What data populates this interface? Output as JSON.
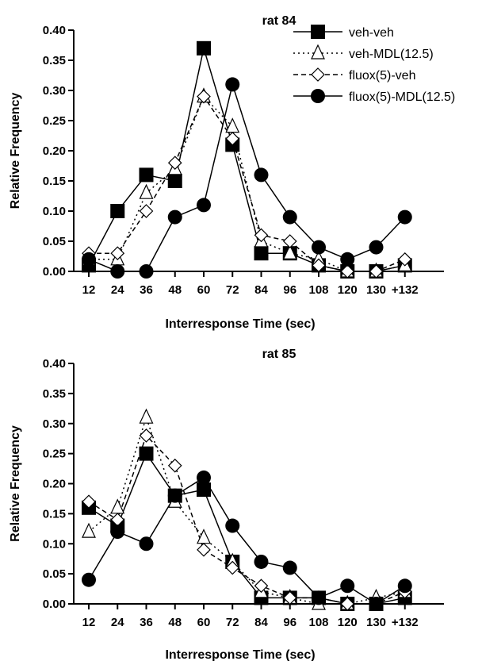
{
  "chart_data": [
    {
      "type": "line",
      "title": "rat 84",
      "xlabel": "Interresponse Time (sec)",
      "ylabel": "Relative Frequency",
      "categories": [
        "12",
        "24",
        "36",
        "48",
        "60",
        "72",
        "84",
        "96",
        "108",
        "120",
        "130",
        "+132"
      ],
      "yticks": [
        "0.00",
        "0.05",
        "0.10",
        "0.15",
        "0.20",
        "0.25",
        "0.30",
        "0.35",
        "0.40"
      ],
      "ylim": [
        0,
        0.4
      ],
      "grid": false,
      "legend_position": "top-right",
      "series": [
        {
          "name": "veh-veh",
          "marker": "filled-square",
          "line": "solid",
          "values": [
            0.01,
            0.1,
            0.16,
            0.15,
            0.37,
            0.21,
            0.03,
            0.03,
            0.01,
            0.0,
            0.0,
            0.01
          ]
        },
        {
          "name": "veh-MDL(12.5)",
          "marker": "open-triangle",
          "line": "dotted",
          "values": [
            0.02,
            0.02,
            0.13,
            0.17,
            0.29,
            0.24,
            0.05,
            0.03,
            0.02,
            0.0,
            0.0,
            0.01
          ]
        },
        {
          "name": "fluox(5)-veh",
          "marker": "open-diamond",
          "line": "dashed",
          "values": [
            0.03,
            0.03,
            0.1,
            0.18,
            0.29,
            0.22,
            0.06,
            0.05,
            0.01,
            0.0,
            0.0,
            0.02
          ]
        },
        {
          "name": "fluox(5)-MDL(12.5)",
          "marker": "filled-circle",
          "line": "solid",
          "values": [
            0.02,
            0.0,
            0.0,
            0.09,
            0.11,
            0.31,
            0.16,
            0.09,
            0.04,
            0.02,
            0.04,
            0.09
          ]
        }
      ]
    },
    {
      "type": "line",
      "title": "rat 85",
      "xlabel": "Interresponse Time (sec)",
      "ylabel": "Relative Frequency",
      "categories": [
        "12",
        "24",
        "36",
        "48",
        "60",
        "72",
        "84",
        "96",
        "108",
        "120",
        "130",
        "+132"
      ],
      "yticks": [
        "0.00",
        "0.05",
        "0.10",
        "0.15",
        "0.20",
        "0.25",
        "0.30",
        "0.35",
        "0.40"
      ],
      "ylim": [
        0,
        0.4
      ],
      "grid": false,
      "series": [
        {
          "name": "veh-veh",
          "marker": "filled-square",
          "line": "solid",
          "values": [
            0.16,
            0.13,
            0.25,
            0.18,
            0.19,
            0.07,
            0.01,
            0.01,
            0.01,
            0.0,
            0.0,
            0.01
          ]
        },
        {
          "name": "veh-MDL(12.5)",
          "marker": "open-triangle",
          "line": "dotted",
          "values": [
            0.12,
            0.16,
            0.31,
            0.17,
            0.11,
            0.07,
            0.02,
            0.01,
            0.0,
            0.0,
            0.01,
            0.02
          ]
        },
        {
          "name": "fluox(5)-veh",
          "marker": "open-diamond",
          "line": "dashed",
          "values": [
            0.17,
            0.14,
            0.28,
            0.23,
            0.09,
            0.06,
            0.03,
            0.01,
            0.01,
            0.0,
            0.0,
            0.02
          ]
        },
        {
          "name": "fluox(5)-MDL(12.5)",
          "marker": "filled-circle",
          "line": "solid",
          "values": [
            0.04,
            0.12,
            0.1,
            0.18,
            0.21,
            0.13,
            0.07,
            0.06,
            0.01,
            0.03,
            0.0,
            0.03
          ]
        }
      ]
    }
  ]
}
